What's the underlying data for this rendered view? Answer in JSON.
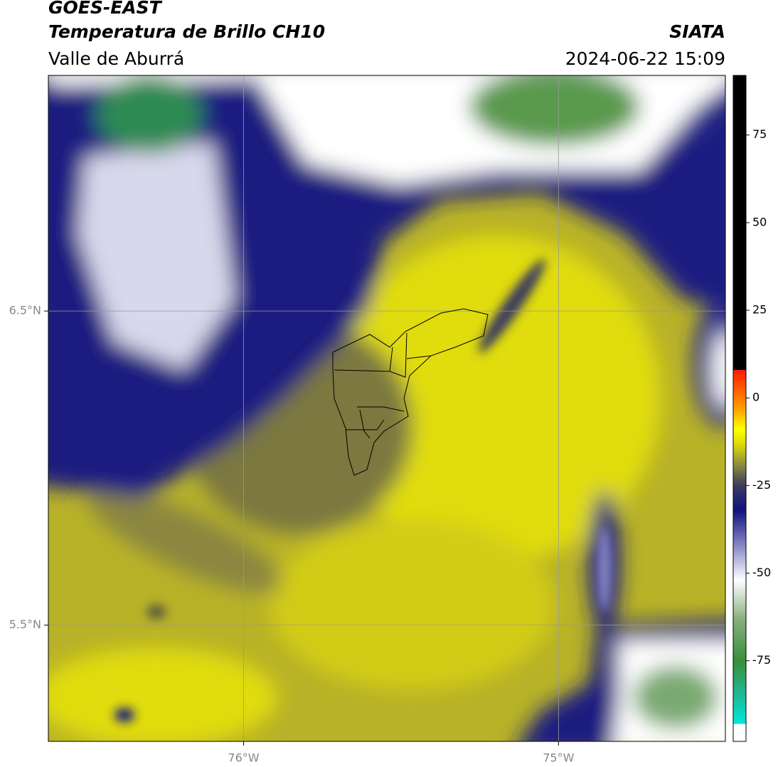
{
  "header": {
    "title": "GOES-EAST",
    "subtitle": "Temperatura de Brillo CH10",
    "region": "Valle de Aburrá",
    "source": "SIATA",
    "datetime": "2024-06-22 15:09"
  },
  "map": {
    "xlim": [
      -76.62,
      -74.47
    ],
    "ylim": [
      5.13,
      7.25
    ],
    "xticks": [
      {
        "value": -76,
        "label": "76°W"
      },
      {
        "value": -75,
        "label": "75°W"
      }
    ],
    "yticks": [
      {
        "value": 6.5,
        "label": "6.5°N"
      },
      {
        "value": 5.5,
        "label": "5.5°N"
      }
    ],
    "grid": true,
    "grid_color": "#999999"
  },
  "colorbar": {
    "lim": [
      -98,
      92
    ],
    "ticks": [
      75,
      50,
      25,
      0,
      -25,
      -50,
      -75
    ],
    "stops": [
      {
        "value": -98,
        "color": "#ffffff"
      },
      {
        "value": -93,
        "color": "#ffffff"
      },
      {
        "value": -93,
        "color": "#00e8dc"
      },
      {
        "value": -85,
        "color": "#1fb99a"
      },
      {
        "value": -75,
        "color": "#3a8f3a"
      },
      {
        "value": -63,
        "color": "#8ab080"
      },
      {
        "value": -52,
        "color": "#ffffff"
      },
      {
        "value": -42,
        "color": "#8585c5"
      },
      {
        "value": -32,
        "color": "#12127e"
      },
      {
        "value": -25,
        "color": "#3b3b5e"
      },
      {
        "value": -19,
        "color": "#8f8d3e"
      },
      {
        "value": -13,
        "color": "#dede08"
      },
      {
        "value": -9,
        "color": "#ffff00"
      },
      {
        "value": -3,
        "color": "#ff9f00"
      },
      {
        "value": 8,
        "color": "#ff1a00"
      },
      {
        "value": 8,
        "color": "#000000"
      },
      {
        "value": 92,
        "color": "#000000"
      }
    ]
  }
}
